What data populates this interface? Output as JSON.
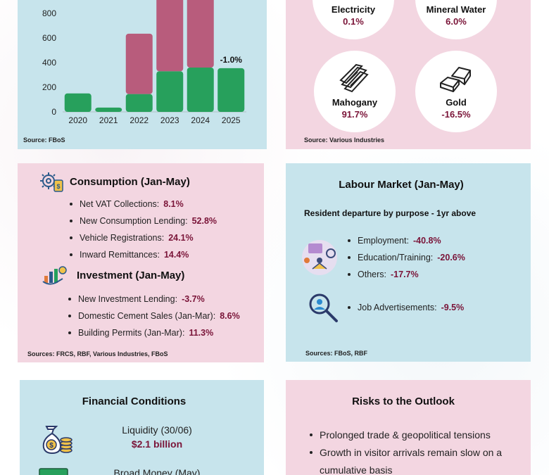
{
  "chart_data": {
    "type": "bar",
    "categories": [
      "2020",
      "2021",
      "2022",
      "2023",
      "2024",
      "2025"
    ],
    "series": [
      {
        "values": [
          150,
          35,
          145,
          330,
          360,
          355
        ],
        "color": "#27a05c"
      },
      {
        "values": [
          0,
          0,
          490,
          620,
          650,
          0
        ],
        "color": "#b85c7c"
      }
    ],
    "yticks": [
      0,
      200,
      400,
      600,
      800
    ],
    "ylim": [
      0,
      1000
    ],
    "annotations": [
      {
        "category": "2025",
        "text": "-1.0%"
      }
    ],
    "source": "Source: FBoS"
  },
  "commodities": {
    "items": [
      {
        "label": "Electricity",
        "value": "0.1%",
        "icon": "lightbulb-icon"
      },
      {
        "label": "Mineral Water",
        "value": "6.0%",
        "icon": "water-bottle-icon"
      },
      {
        "label": "Mahogany",
        "value": "91.7%",
        "icon": "timber-logs-icon"
      },
      {
        "label": "Gold",
        "value": "-16.5%",
        "icon": "gold-bars-icon"
      }
    ],
    "source": "Source: Various Industries"
  },
  "consumption": {
    "title": "Consumption (Jan-May)",
    "items": [
      {
        "label": "Net VAT Collections:",
        "value": "8.1%"
      },
      {
        "label": "New Consumption Lending:",
        "value": "52.8%"
      },
      {
        "label": "Vehicle Registrations:",
        "value": "24.1%"
      },
      {
        "label": "Inward Remittances:",
        "value": "14.4%"
      }
    ]
  },
  "investment": {
    "title": "Investment (Jan-May)",
    "items": [
      {
        "label": "New Investment Lending:",
        "value": "-3.7%"
      },
      {
        "label": "Domestic Cement Sales (Jan-Mar):",
        "value": "8.6%"
      },
      {
        "label": "Building Permits (Jan-Mar):",
        "value": "11.3%"
      }
    ],
    "source": "Sources: FRCS, RBF, Various Industries, FBoS"
  },
  "labour": {
    "title": "Labour Market (Jan-May)",
    "subtitle": "Resident departure by purpose - 1yr above",
    "items": [
      {
        "label": "Employment:",
        "value": "-40.8%"
      },
      {
        "label": "Education/Training:",
        "value": "-20.6%"
      },
      {
        "label": "Others:",
        "value": "-17.7%"
      }
    ],
    "job_ads": {
      "label": "Job Advertisements:",
      "value": "-9.5%"
    },
    "source": "Sources: FBoS, RBF"
  },
  "financial": {
    "title": "Financial Conditions",
    "liquidity_label": "Liquidity (30/06)",
    "liquidity_value": "$2.1 billion",
    "broad_money_label": "Broad Money (May)"
  },
  "risks": {
    "title": "Risks to the Outlook",
    "items": [
      "Prolonged trade & geopolitical tensions",
      "Growth in visitor arrivals remain slow on a cumulative basis"
    ]
  }
}
